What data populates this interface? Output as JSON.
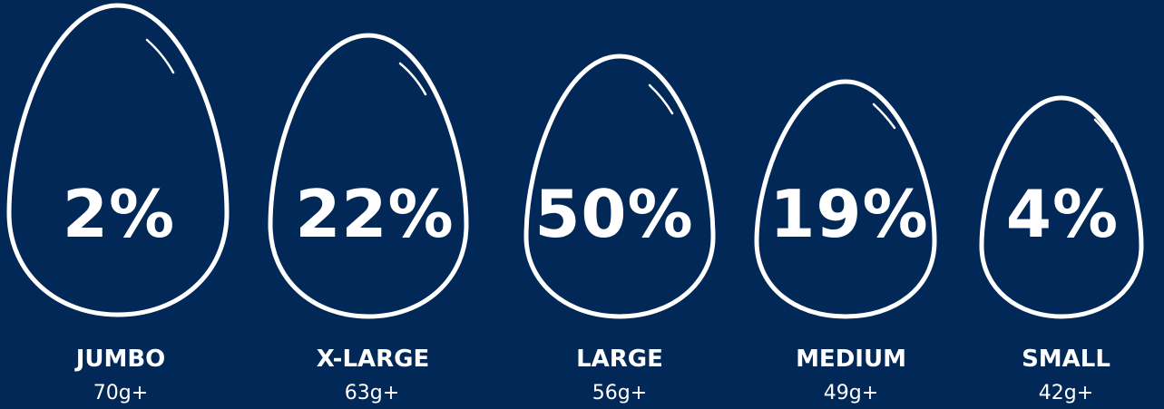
{
  "colors": {
    "background": "#022857",
    "foreground": "#ffffff"
  },
  "egg_icon": "egg-outline-icon",
  "eggs": [
    {
      "percent": "2%",
      "name": "JUMBO",
      "weight": "70g+"
    },
    {
      "percent": "22%",
      "name": "X-LARGE",
      "weight": "63g+"
    },
    {
      "percent": "50%",
      "name": "LARGE",
      "weight": "56g+"
    },
    {
      "percent": "19%",
      "name": "MEDIUM",
      "weight": "49g+"
    },
    {
      "percent": "4%",
      "name": "SMALL",
      "weight": "42g+"
    }
  ]
}
